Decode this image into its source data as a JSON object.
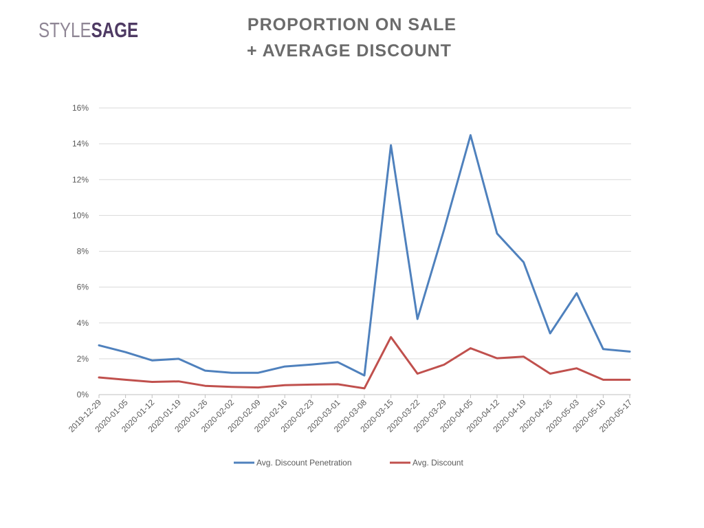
{
  "logo": {
    "part1": "STYLE",
    "part2": "SAGE"
  },
  "header": {
    "title_line1": "PROPORTION ON SALE",
    "title_line2": "+ AVERAGE DISCOUNT"
  },
  "chart_data": {
    "type": "line",
    "title": "PROPORTION ON SALE + AVERAGE DISCOUNT",
    "xlabel": "",
    "ylabel": "",
    "ylim": [
      0,
      0.16
    ],
    "yticks": [
      0,
      0.02,
      0.04,
      0.06,
      0.08,
      0.1,
      0.12,
      0.14,
      0.16
    ],
    "ytick_labels": [
      "0%",
      "2%",
      "4%",
      "6%",
      "8%",
      "10%",
      "12%",
      "14%",
      "16%"
    ],
    "grid": true,
    "legend_position": "bottom",
    "categories": [
      "2019-12-29",
      "2020-01-05",
      "2020-01-12",
      "2020-01-19",
      "2020-01-26",
      "2020-02-02",
      "2020-02-09",
      "2020-02-16",
      "2020-02-23",
      "2020-03-01",
      "2020-03-08",
      "2020-03-15",
      "2020-03-22",
      "2020-03-29",
      "2020-04-05",
      "2020-04-12",
      "2020-04-19",
      "2020-04-26",
      "2020-05-03",
      "2020-05-10",
      "2020-05-17"
    ],
    "series": [
      {
        "name": "Avg. Discount Penetration",
        "color": "#4f81bd",
        "values": [
          0.0275,
          0.0237,
          0.0191,
          0.02,
          0.0134,
          0.0122,
          0.0122,
          0.0157,
          0.0168,
          0.0181,
          0.0107,
          0.1392,
          0.0422,
          0.0919,
          0.1448,
          0.0899,
          0.0739,
          0.0342,
          0.0566,
          0.0254,
          0.024
        ]
      },
      {
        "name": "Avg. Discount",
        "color": "#c0504d",
        "values": [
          0.0096,
          0.0083,
          0.0071,
          0.0074,
          0.0049,
          0.0043,
          0.004,
          0.0053,
          0.0056,
          0.0058,
          0.0035,
          0.0321,
          0.0117,
          0.0167,
          0.0259,
          0.0203,
          0.0212,
          0.0117,
          0.0147,
          0.0083,
          0.0083
        ]
      }
    ]
  }
}
